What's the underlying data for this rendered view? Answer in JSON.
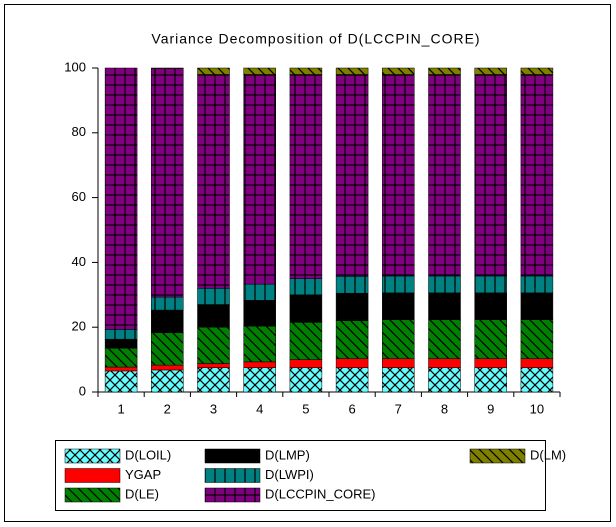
{
  "chart_data": {
    "type": "stacked-bar",
    "title": "Variance Decomposition of D(LCCPIN_CORE)",
    "categories": [
      "1",
      "2",
      "3",
      "4",
      "5",
      "6",
      "7",
      "8",
      "9",
      "10"
    ],
    "ylim": [
      0,
      100
    ],
    "yticks": [
      0,
      20,
      40,
      60,
      80,
      100
    ],
    "series": [
      {
        "name": "D(LOIL)",
        "color": "#66ffff",
        "pattern": "cross",
        "values": [
          6.5,
          6.8,
          7.5,
          7.5,
          7.5,
          7.5,
          7.5,
          7.5,
          7.5,
          7.5
        ]
      },
      {
        "name": "YGAP",
        "color": "#ff0000",
        "pattern": "solid",
        "values": [
          1.2,
          1.5,
          1.3,
          1.8,
          2.5,
          2.8,
          2.8,
          2.8,
          2.8,
          2.8
        ]
      },
      {
        "name": "D(LE)",
        "color": "#008000",
        "pattern": "diagonal",
        "values": [
          5.8,
          10,
          11.2,
          11,
          11.5,
          11.7,
          12,
          12,
          12,
          12
        ]
      },
      {
        "name": "D(LMP)",
        "color": "#000000",
        "pattern": "solid",
        "values": [
          2.8,
          7,
          7,
          8,
          8.5,
          8.5,
          8.3,
          8.3,
          8.3,
          8.3
        ]
      },
      {
        "name": "D(LWPI)",
        "color": "#008080",
        "pattern": "vertical",
        "values": [
          3,
          4,
          5,
          5,
          5,
          5.2,
          5.2,
          5.2,
          5.2,
          5.2
        ]
      },
      {
        "name": "D(LCCPIN_CORE)",
        "color": "#800080",
        "pattern": "grid",
        "values": [
          80.7,
          70.5,
          66,
          64.7,
          63,
          62.3,
          62.2,
          62.2,
          62.2,
          62.2
        ]
      },
      {
        "name": "D(LM)",
        "color": "#808000",
        "pattern": "diagonal",
        "values": [
          0,
          0.2,
          2,
          2,
          2,
          2,
          2,
          2,
          2,
          2
        ]
      }
    ]
  }
}
